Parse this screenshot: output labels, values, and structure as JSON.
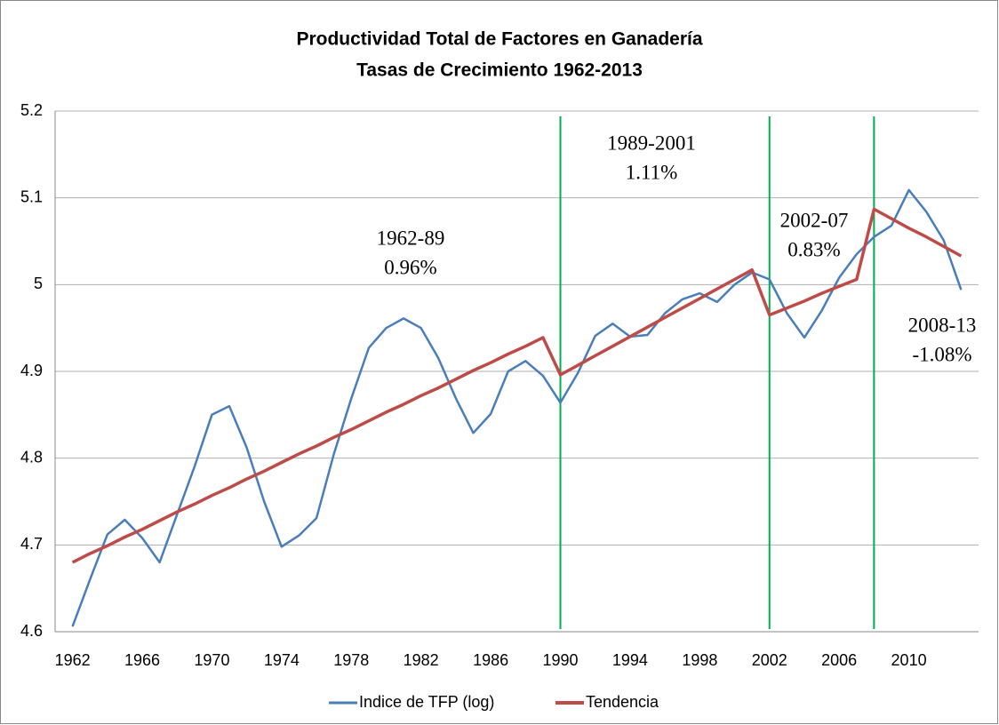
{
  "chart_data": {
    "type": "line",
    "title": "Productividad Total de Factores en Ganadería",
    "subtitle": "Tasas de Crecimiento 1962-2013",
    "x": [
      1962,
      1963,
      1964,
      1965,
      1966,
      1967,
      1968,
      1969,
      1970,
      1971,
      1972,
      1973,
      1974,
      1975,
      1976,
      1977,
      1978,
      1979,
      1980,
      1981,
      1982,
      1983,
      1984,
      1985,
      1986,
      1987,
      1988,
      1989,
      1990,
      1991,
      1992,
      1993,
      1994,
      1995,
      1996,
      1997,
      1998,
      1999,
      2000,
      2001,
      2002,
      2003,
      2004,
      2005,
      2006,
      2007,
      2008,
      2009,
      2010,
      2011,
      2012,
      2013
    ],
    "series": [
      {
        "name": "Indice de TFP (log)",
        "color": "#4a7ebb",
        "values": [
          4.606,
          4.66,
          4.712,
          4.729,
          4.708,
          4.68,
          4.735,
          4.79,
          4.85,
          4.86,
          4.812,
          4.75,
          4.698,
          4.711,
          4.731,
          4.805,
          4.869,
          4.927,
          4.95,
          4.961,
          4.95,
          4.915,
          4.869,
          4.829,
          4.851,
          4.9,
          4.912,
          4.895,
          4.864,
          4.898,
          4.941,
          4.955,
          4.94,
          4.942,
          4.967,
          4.983,
          4.99,
          4.98,
          5.0,
          5.014,
          5.006,
          4.967,
          4.939,
          4.97,
          5.008,
          5.035,
          5.055,
          5.068,
          5.109,
          5.084,
          5.051,
          4.994
        ]
      },
      {
        "name": "Tendencia",
        "color": "#be4b48",
        "values": [
          4.68,
          4.69,
          4.699,
          4.709,
          4.718,
          4.728,
          4.738,
          4.747,
          4.757,
          4.766,
          4.776,
          4.785,
          4.795,
          4.805,
          4.814,
          4.824,
          4.833,
          4.843,
          4.853,
          4.862,
          4.872,
          4.881,
          4.891,
          4.901,
          4.91,
          4.92,
          4.929,
          4.939,
          4.896,
          4.907,
          4.918,
          4.929,
          4.94,
          4.951,
          4.962,
          4.973,
          4.984,
          4.995,
          5.006,
          5.017,
          4.965,
          4.973,
          4.981,
          4.99,
          4.998,
          5.006,
          5.087,
          5.076,
          5.065,
          5.055,
          5.044,
          5.033
        ]
      }
    ],
    "xlim": [
      1961,
      2014
    ],
    "xticks": [
      1962,
      1966,
      1970,
      1974,
      1978,
      1982,
      1986,
      1990,
      1994,
      1998,
      2002,
      2006,
      2010
    ],
    "ylim": [
      4.6,
      5.2
    ],
    "yticks": [
      4.6,
      4.7,
      4.8,
      4.9,
      5,
      5.1,
      5.2
    ],
    "grid": true,
    "vlines": [
      1990,
      2002,
      2008
    ],
    "vline_color": "#00b050",
    "annotations": [
      [
        "1962-89",
        "0.96%"
      ],
      [
        "1989-2001",
        "1.11%"
      ],
      [
        "2002-07",
        "0.83%"
      ],
      [
        "2008-13",
        "-1.08%"
      ]
    ],
    "legend": "bottom"
  }
}
